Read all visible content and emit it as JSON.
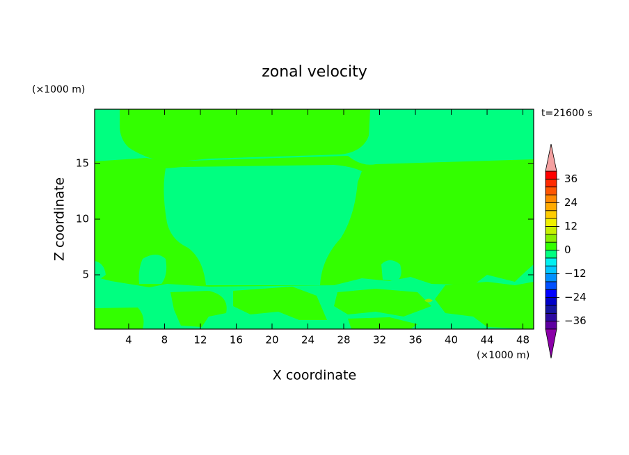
{
  "chart_data": {
    "type": "contour",
    "title": "zonal velocity",
    "xlabel": "X coordinate",
    "ylabel": "Z coordinate",
    "x_unit": "(×1000 m)",
    "y_unit": "(×1000 m)",
    "time_label": "t=21600 s",
    "xlim": [
      0.2,
      49.2
    ],
    "ylim": [
      0.125,
      19.875
    ],
    "xticks": [
      4,
      8,
      12,
      16,
      20,
      24,
      28,
      32,
      36,
      40,
      44,
      48
    ],
    "yticks": [
      5,
      10,
      15
    ],
    "colorbar": {
      "levels": [
        -40,
        -36,
        -32,
        -28,
        -24,
        -20,
        -16,
        -12,
        -8,
        -4,
        0,
        4,
        8,
        12,
        16,
        20,
        24,
        28,
        32,
        36,
        40
      ],
      "colors": [
        "#8b00a8",
        "#5d00a0",
        "#2c0aa0",
        "#1414a0",
        "#0000c8",
        "#0000ff",
        "#0050ff",
        "#0090ff",
        "#00c8ff",
        "#00f0f0",
        "#00ff80",
        "#33ff00",
        "#88ee00",
        "#c8f000",
        "#f0f000",
        "#ffcc00",
        "#ffaa00",
        "#ff8800",
        "#ff5500",
        "#ff2a00",
        "#ff0000",
        "#f4a0a0"
      ],
      "ticks": [
        {
          "value": -36,
          "label": "−36"
        },
        {
          "value": -24,
          "label": "−24"
        },
        {
          "value": -12,
          "label": "−12"
        },
        0,
        12,
        24,
        36
      ]
    }
  }
}
